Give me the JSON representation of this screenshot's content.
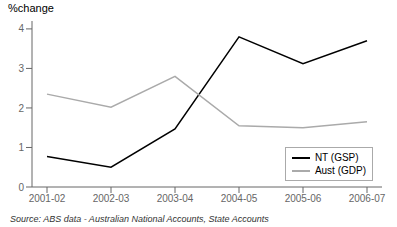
{
  "chart_data": {
    "type": "line",
    "ylabel": "%change",
    "annotations": [
      "Source: ABS data - Australian National Accounts, State Accounts"
    ],
    "categories": [
      "2001-02",
      "2002-03",
      "2003-04",
      "2004-05",
      "2005-06",
      "2006-07"
    ],
    "series": [
      {
        "name": "NT (GSP)",
        "color": "#000000",
        "values": [
          0.77,
          0.5,
          1.47,
          3.8,
          3.12,
          3.7
        ]
      },
      {
        "name": "Aust (GDP)",
        "color": "#aaaaaa",
        "values": [
          2.35,
          2.02,
          2.8,
          1.55,
          1.5,
          1.65
        ]
      }
    ],
    "ylim": [
      0,
      4.2
    ],
    "yticks": [
      0,
      1,
      2,
      3,
      4
    ],
    "grid": false,
    "legend": "lower right"
  }
}
